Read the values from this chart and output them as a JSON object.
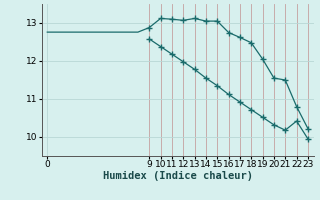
{
  "xlabel": "Humidex (Indice chaleur)",
  "background_color": "#d7f0ee",
  "grid_color_v": "#c4a0a0",
  "grid_color_h": "#b8d8d5",
  "line_color": "#1a6b6b",
  "upper_x": [
    0,
    1,
    2,
    3,
    4,
    5,
    6,
    7,
    8,
    9,
    10,
    11,
    12,
    13,
    14,
    15,
    16,
    17,
    18,
    19,
    20,
    21,
    22,
    23
  ],
  "upper_y": [
    12.76,
    12.76,
    12.76,
    12.76,
    12.76,
    12.76,
    12.76,
    12.76,
    12.76,
    12.88,
    13.12,
    13.1,
    13.07,
    13.12,
    13.05,
    13.05,
    12.75,
    12.62,
    12.48,
    12.05,
    11.55,
    11.5,
    10.8,
    10.22
  ],
  "lower_x": [
    9,
    10,
    11,
    12,
    13,
    14,
    15,
    16,
    17,
    18,
    19,
    20,
    21,
    22,
    23
  ],
  "lower_y": [
    12.58,
    12.38,
    12.18,
    11.98,
    11.78,
    11.55,
    11.35,
    11.12,
    10.92,
    10.72,
    10.52,
    10.32,
    10.18,
    10.42,
    9.95
  ],
  "upper_marker_x": [
    9,
    10,
    11,
    12,
    13,
    14,
    15,
    16,
    17,
    18,
    19,
    20,
    21,
    22,
    23
  ],
  "upper_marker_y": [
    12.88,
    13.12,
    13.1,
    13.07,
    13.12,
    13.05,
    13.05,
    12.75,
    12.62,
    12.48,
    12.05,
    11.55,
    11.5,
    10.8,
    10.22
  ],
  "ylim": [
    9.5,
    13.5
  ],
  "xlim": [
    -0.5,
    23.5
  ],
  "yticks": [
    10,
    11,
    12,
    13
  ],
  "xticks_labeled": [
    0,
    9,
    10,
    11,
    12,
    13,
    14,
    15,
    16,
    17,
    18,
    19,
    20,
    21,
    22,
    23
  ],
  "marker": "+",
  "marker_size": 4,
  "line_width": 0.9,
  "xlabel_fontsize": 7.5,
  "tick_fontsize": 6.5
}
